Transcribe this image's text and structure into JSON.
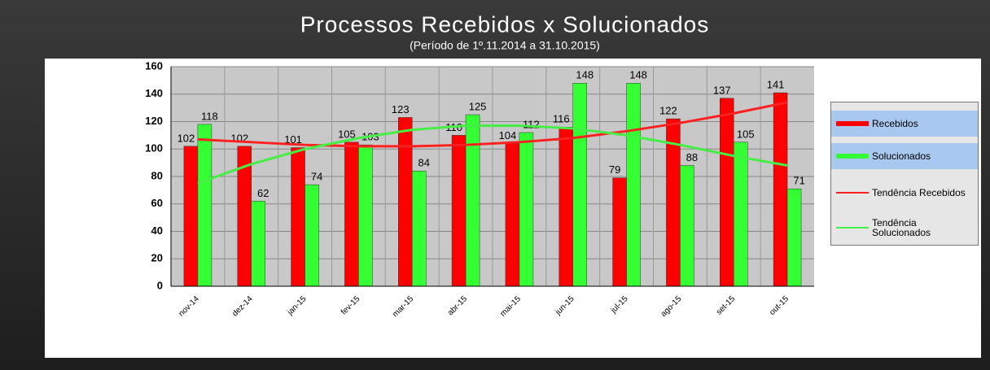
{
  "chart_data": {
    "type": "bar",
    "title": "Processos Recebidos x Solucionados",
    "subtitle": "(Período de 1º.11.2014  a  31.10.2015)",
    "categories": [
      "nov-14",
      "dez-14",
      "jan-15",
      "fev-15",
      "mar-15",
      "abr-15",
      "mai-15",
      "jun-15",
      "jul-15",
      "ago-15",
      "set-15",
      "out-15"
    ],
    "series": [
      {
        "name": "Recebidos",
        "type": "bar",
        "color": "#ff0000",
        "values": [
          102,
          102,
          101,
          105,
          123,
          110,
          104,
          116,
          79,
          122,
          137,
          141
        ]
      },
      {
        "name": "Solucionados",
        "type": "bar",
        "color": "#33ff33",
        "values": [
          118,
          62,
          74,
          103,
          84,
          125,
          112,
          148,
          148,
          88,
          105,
          71
        ]
      },
      {
        "name": "Tendência Recebidos",
        "type": "line",
        "color": "#ff2020",
        "values": [
          107,
          105,
          103,
          102,
          102,
          103,
          105,
          108,
          113,
          119,
          126,
          134
        ]
      },
      {
        "name": "Tendência Solucionados",
        "type": "line",
        "color": "#44ee44",
        "values": [
          75,
          89,
          100,
          108,
          114,
          117,
          117,
          115,
          110,
          103,
          95,
          88
        ]
      }
    ],
    "ylim": [
      0,
      160
    ],
    "yticks": [
      0,
      20,
      40,
      60,
      80,
      100,
      120,
      140,
      160
    ],
    "grid": true
  }
}
